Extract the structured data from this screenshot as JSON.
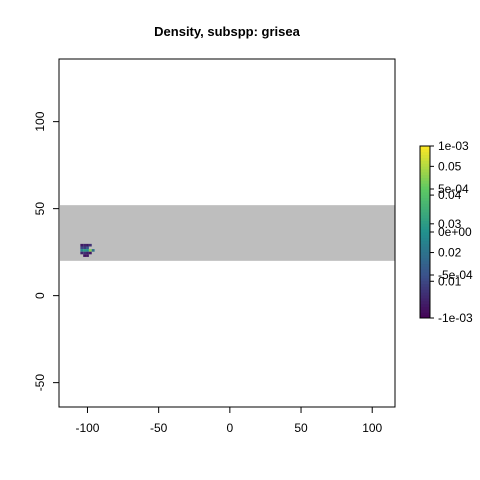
{
  "chart_data": {
    "type": "heatmap",
    "title": "Density, subspp: grisea",
    "xlabel": "",
    "ylabel": "",
    "xlim": [
      -120,
      116
    ],
    "ylim": [
      -64,
      136
    ],
    "x_ticks": [
      -100,
      -50,
      0,
      50,
      100
    ],
    "y_ticks": [
      -50,
      0,
      50,
      100
    ],
    "band": {
      "y_from": 20,
      "y_to": 52,
      "color": "#bebebe"
    },
    "grid": false,
    "cells": [
      {
        "x": -104,
        "y": 29,
        "value": 0.004
      },
      {
        "x": -102,
        "y": 29,
        "value": 0.006
      },
      {
        "x": -100,
        "y": 29,
        "value": 0.004
      },
      {
        "x": -98,
        "y": 29,
        "value": 0.008
      },
      {
        "x": -104,
        "y": 27.5,
        "value": 0.012
      },
      {
        "x": -102,
        "y": 27.5,
        "value": 0.01
      },
      {
        "x": -100,
        "y": 27.5,
        "value": 0.015
      },
      {
        "x": -104,
        "y": 26,
        "value": 0.025
      },
      {
        "x": -102,
        "y": 26,
        "value": 0.03
      },
      {
        "x": -100,
        "y": 26,
        "value": 0.028
      },
      {
        "x": -98,
        "y": 26,
        "value": 0.045
      },
      {
        "x": -96,
        "y": 26,
        "value": 0.02
      },
      {
        "x": -104,
        "y": 24.5,
        "value": 0.006
      },
      {
        "x": -102,
        "y": 24.5,
        "value": 0.008
      },
      {
        "x": -100,
        "y": 24.5,
        "value": 0.005
      },
      {
        "x": -98,
        "y": 24.5,
        "value": 0.004
      },
      {
        "x": -102,
        "y": 23,
        "value": 0.003
      },
      {
        "x": -100,
        "y": 23,
        "value": 0.004
      }
    ],
    "legend": {
      "position": "right",
      "colors": [
        "#440154",
        "#3b528b",
        "#21908d",
        "#5dc863",
        "#fde725"
      ],
      "scale_a": {
        "range": [
          0,
          0.055
        ],
        "labels": [
          "0.01",
          "0.02",
          "0.03",
          "0.04",
          "0.05"
        ],
        "values": [
          0.01,
          0.02,
          0.03,
          0.04,
          0.05
        ]
      },
      "scale_b": {
        "range": [
          -0.001,
          0.001
        ],
        "labels": [
          "-1e-03",
          "-5e-04",
          "0e+00",
          "5e-04",
          "1e-03"
        ],
        "values": [
          -0.001,
          -0.0005,
          0,
          0.0005,
          0.001
        ]
      }
    }
  }
}
